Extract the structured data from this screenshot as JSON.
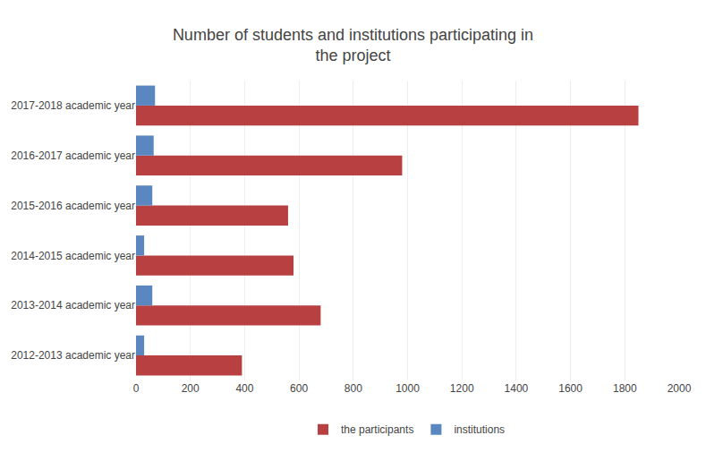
{
  "chart_data": {
    "type": "bar",
    "orientation": "horizontal",
    "title": "Number of students and institutions participating in\nthe project",
    "categories": [
      "2012-2013 academic year",
      "2013-2014 academic year",
      "2014-2015 academic year",
      "2015-2016 academic year",
      "2016-2017 academic year",
      "2017-2018 academic year"
    ],
    "series": [
      {
        "name": "the participants",
        "color": "#b94040",
        "values": [
          390,
          680,
          580,
          560,
          980,
          1850
        ]
      },
      {
        "name": "institutions",
        "color": "#5b87c1",
        "values": [
          30,
          60,
          30,
          60,
          65,
          70
        ]
      }
    ],
    "xlim": [
      0,
      2000
    ],
    "xticks": [
      0,
      200,
      400,
      600,
      800,
      1000,
      1200,
      1400,
      1600,
      1800,
      2000
    ],
    "grid": true,
    "legend": "bottom"
  }
}
